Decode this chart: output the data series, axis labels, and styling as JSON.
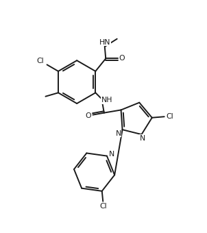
{
  "bg_color": "#ffffff",
  "line_color": "#1a1a1a",
  "line_width": 1.4,
  "font_size": 7.8,
  "figsize": [
    3.02,
    3.4
  ],
  "dpi": 100,
  "xlim": [
    0,
    10
  ],
  "ylim": [
    0,
    11.33
  ]
}
